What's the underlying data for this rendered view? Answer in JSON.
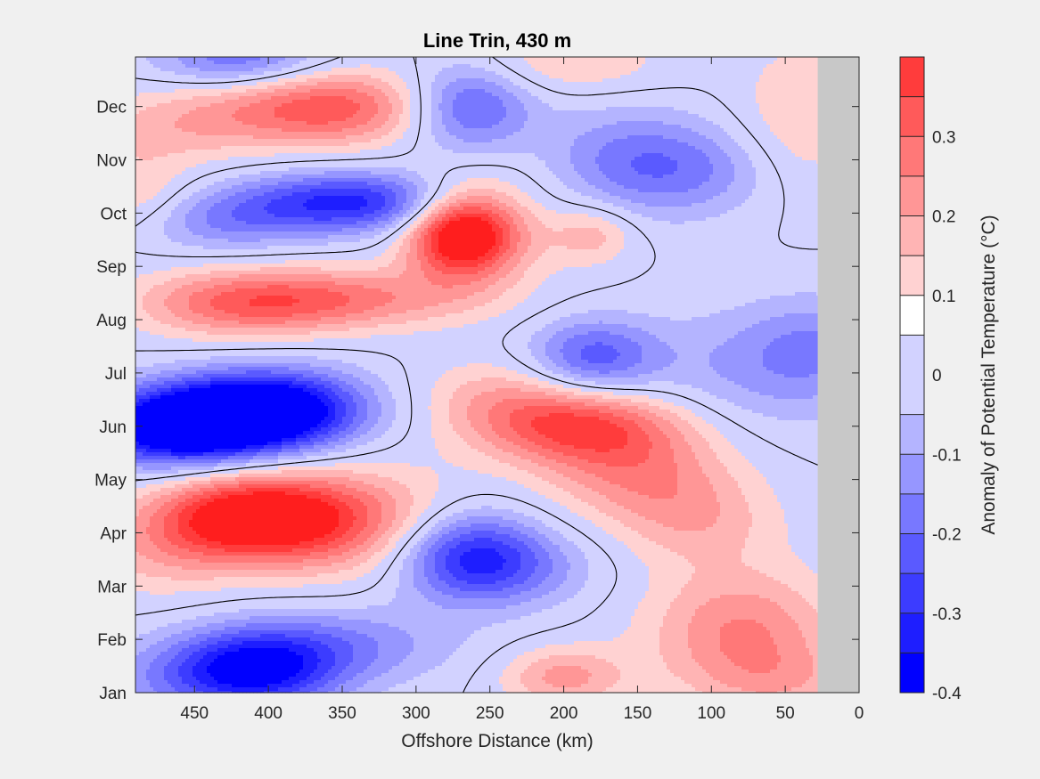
{
  "chart_data": {
    "type": "heatmap",
    "title": "Line Trin, 430 m",
    "xlabel": "Offshore Distance (km)",
    "ylabel": "",
    "colorbar_label": "Anomaly of Potential Temperature (°C)",
    "x_ticks": [
      "450",
      "400",
      "350",
      "300",
      "250",
      "200",
      "150",
      "100",
      "50",
      "0"
    ],
    "x_tick_values": [
      450,
      400,
      350,
      300,
      250,
      200,
      150,
      100,
      50,
      0
    ],
    "xlim": [
      490,
      0
    ],
    "x_reversed": true,
    "y_ticks": [
      "Jan",
      "Feb",
      "Mar",
      "Apr",
      "May",
      "Jun",
      "Jul",
      "Aug",
      "Sep",
      "Oct",
      "Nov",
      "Dec"
    ],
    "y_tick_values": [
      0,
      1,
      2,
      3,
      4,
      5,
      6,
      7,
      8,
      9,
      10,
      11
    ],
    "ylim": [
      0,
      11.93
    ],
    "colorbar_ticks": [
      "0.3",
      "0.2",
      "0.1",
      "0",
      "-0.1",
      "-0.2",
      "-0.3",
      "-0.4"
    ],
    "colorbar_tick_values": [
      0.3,
      0.2,
      0.1,
      0,
      -0.1,
      -0.2,
      -0.3,
      -0.4
    ],
    "clim": [
      -0.4,
      0.4
    ],
    "levels": [
      -0.4,
      -0.35,
      -0.3,
      -0.25,
      -0.2,
      -0.15,
      -0.1,
      -0.05,
      0.05,
      0.1,
      0.15,
      0.2,
      0.25,
      0.3,
      0.35,
      0.4
    ],
    "zero_contour": true,
    "no_data_region_km": [
      0,
      28
    ],
    "features": [
      {
        "x": 415,
        "y": 3.3,
        "amp": 0.38,
        "sx": 45,
        "sy": 0.55
      },
      {
        "x": 350,
        "y": 3.2,
        "amp": 0.22,
        "sx": 55,
        "sy": 0.7
      },
      {
        "x": 475,
        "y": 2.6,
        "amp": 0.1,
        "sx": 40,
        "sy": 0.6
      },
      {
        "x": 430,
        "y": 5.1,
        "amp": -0.38,
        "sx": 50,
        "sy": 0.5
      },
      {
        "x": 395,
        "y": 5.4,
        "amp": -0.3,
        "sx": 45,
        "sy": 0.5
      },
      {
        "x": 470,
        "y": 4.9,
        "amp": -0.25,
        "sx": 40,
        "sy": 0.5
      },
      {
        "x": 410,
        "y": 0.4,
        "amp": -0.35,
        "sx": 40,
        "sy": 0.5
      },
      {
        "x": 360,
        "y": 0.9,
        "amp": -0.15,
        "sx": 60,
        "sy": 0.5
      },
      {
        "x": 470,
        "y": 0.2,
        "amp": -0.08,
        "sx": 40,
        "sy": 0.5
      },
      {
        "x": 265,
        "y": 2.6,
        "amp": -0.3,
        "sx": 35,
        "sy": 0.6
      },
      {
        "x": 230,
        "y": 2.3,
        "amp": -0.1,
        "sx": 40,
        "sy": 0.5
      },
      {
        "x": 190,
        "y": 5.0,
        "amp": 0.3,
        "sx": 50,
        "sy": 0.5
      },
      {
        "x": 150,
        "y": 4.1,
        "amp": 0.17,
        "sx": 45,
        "sy": 0.6
      },
      {
        "x": 110,
        "y": 3.2,
        "amp": 0.12,
        "sx": 40,
        "sy": 0.6
      },
      {
        "x": 245,
        "y": 5.6,
        "amp": 0.1,
        "sx": 40,
        "sy": 0.5
      },
      {
        "x": 80,
        "y": 1.2,
        "amp": 0.2,
        "sx": 45,
        "sy": 0.8
      },
      {
        "x": 50,
        "y": 0.2,
        "amp": 0.1,
        "sx": 45,
        "sy": 0.5
      },
      {
        "x": 200,
        "y": 0.3,
        "amp": 0.17,
        "sx": 30,
        "sy": 0.4
      },
      {
        "x": 270,
        "y": 8.6,
        "amp": 0.4,
        "sx": 25,
        "sy": 0.55
      },
      {
        "x": 250,
        "y": 8.8,
        "amp": 0.12,
        "sx": 35,
        "sy": 0.8
      },
      {
        "x": 420,
        "y": 7.3,
        "amp": 0.22,
        "sx": 50,
        "sy": 0.45
      },
      {
        "x": 340,
        "y": 7.4,
        "amp": 0.18,
        "sx": 60,
        "sy": 0.4
      },
      {
        "x": 180,
        "y": 6.3,
        "amp": -0.22,
        "sx": 30,
        "sy": 0.5
      },
      {
        "x": 60,
        "y": 6.1,
        "amp": -0.12,
        "sx": 60,
        "sy": 0.8
      },
      {
        "x": 30,
        "y": 6.6,
        "amp": -0.08,
        "sx": 30,
        "sy": 0.6
      },
      {
        "x": 345,
        "y": 9.2,
        "amp": -0.32,
        "sx": 55,
        "sy": 0.4
      },
      {
        "x": 430,
        "y": 8.8,
        "amp": -0.12,
        "sx": 40,
        "sy": 0.4
      },
      {
        "x": 265,
        "y": 11.0,
        "amp": -0.25,
        "sx": 30,
        "sy": 0.6
      },
      {
        "x": 160,
        "y": 10.0,
        "amp": -0.14,
        "sx": 40,
        "sy": 0.7
      },
      {
        "x": 110,
        "y": 9.8,
        "amp": -0.12,
        "sx": 40,
        "sy": 0.6
      },
      {
        "x": 350,
        "y": 11.0,
        "amp": 0.2,
        "sx": 50,
        "sy": 0.5
      },
      {
        "x": 400,
        "y": 10.9,
        "amp": 0.12,
        "sx": 60,
        "sy": 0.5
      },
      {
        "x": 470,
        "y": 10.5,
        "amp": 0.08,
        "sx": 40,
        "sy": 0.5
      },
      {
        "x": 420,
        "y": 11.9,
        "amp": -0.2,
        "sx": 40,
        "sy": 0.4
      },
      {
        "x": 490,
        "y": 9.4,
        "amp": 0.1,
        "sx": 25,
        "sy": 0.5
      },
      {
        "x": 200,
        "y": 11.8,
        "amp": 0.1,
        "sx": 50,
        "sy": 0.4
      },
      {
        "x": 40,
        "y": 10.8,
        "amp": 0.1,
        "sx": 30,
        "sy": 1.0
      },
      {
        "x": 180,
        "y": 8.6,
        "amp": 0.12,
        "sx": 20,
        "sy": 0.4
      }
    ]
  }
}
